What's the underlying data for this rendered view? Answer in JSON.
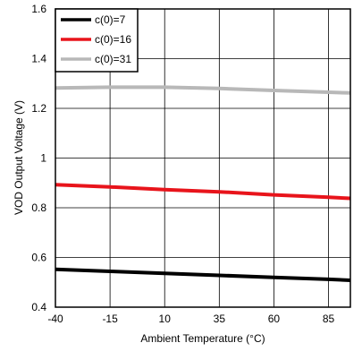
{
  "chart_data": {
    "type": "line",
    "xlabel": "Ambient Temperature (°C)",
    "ylabel": "VOD Output Voltage (V)",
    "xlim": [
      -40,
      95
    ],
    "ylim": [
      0.4,
      1.6
    ],
    "x_ticks": [
      -40,
      -15,
      10,
      35,
      60,
      85
    ],
    "x_tick_labels": [
      "-40",
      "-15",
      "10",
      "35",
      "60",
      "85"
    ],
    "y_ticks": [
      0.4,
      0.6,
      0.8,
      1.0,
      1.2,
      1.4,
      1.6
    ],
    "y_tick_labels": [
      "0.4",
      "0.6",
      "0.8",
      "1",
      "1.2",
      "1.4",
      "1.6"
    ],
    "grid": true,
    "legend_position": "top-left",
    "series": [
      {
        "name": "c(0)=7",
        "color": "#000000",
        "x": [
          -40,
          -15,
          10,
          35,
          60,
          85,
          95
        ],
        "y": [
          0.552,
          0.544,
          0.536,
          0.528,
          0.52,
          0.512,
          0.508
        ]
      },
      {
        "name": "c(0)=16",
        "color": "#e8141b",
        "x": [
          -40,
          -15,
          10,
          35,
          60,
          85,
          95
        ],
        "y": [
          0.893,
          0.884,
          0.873,
          0.864,
          0.852,
          0.842,
          0.838
        ]
      },
      {
        "name": "c(0)=31",
        "color": "#b8b8b8",
        "x": [
          -40,
          -15,
          10,
          35,
          60,
          85,
          95
        ],
        "y": [
          1.282,
          1.285,
          1.285,
          1.28,
          1.272,
          1.265,
          1.262
        ]
      }
    ]
  }
}
